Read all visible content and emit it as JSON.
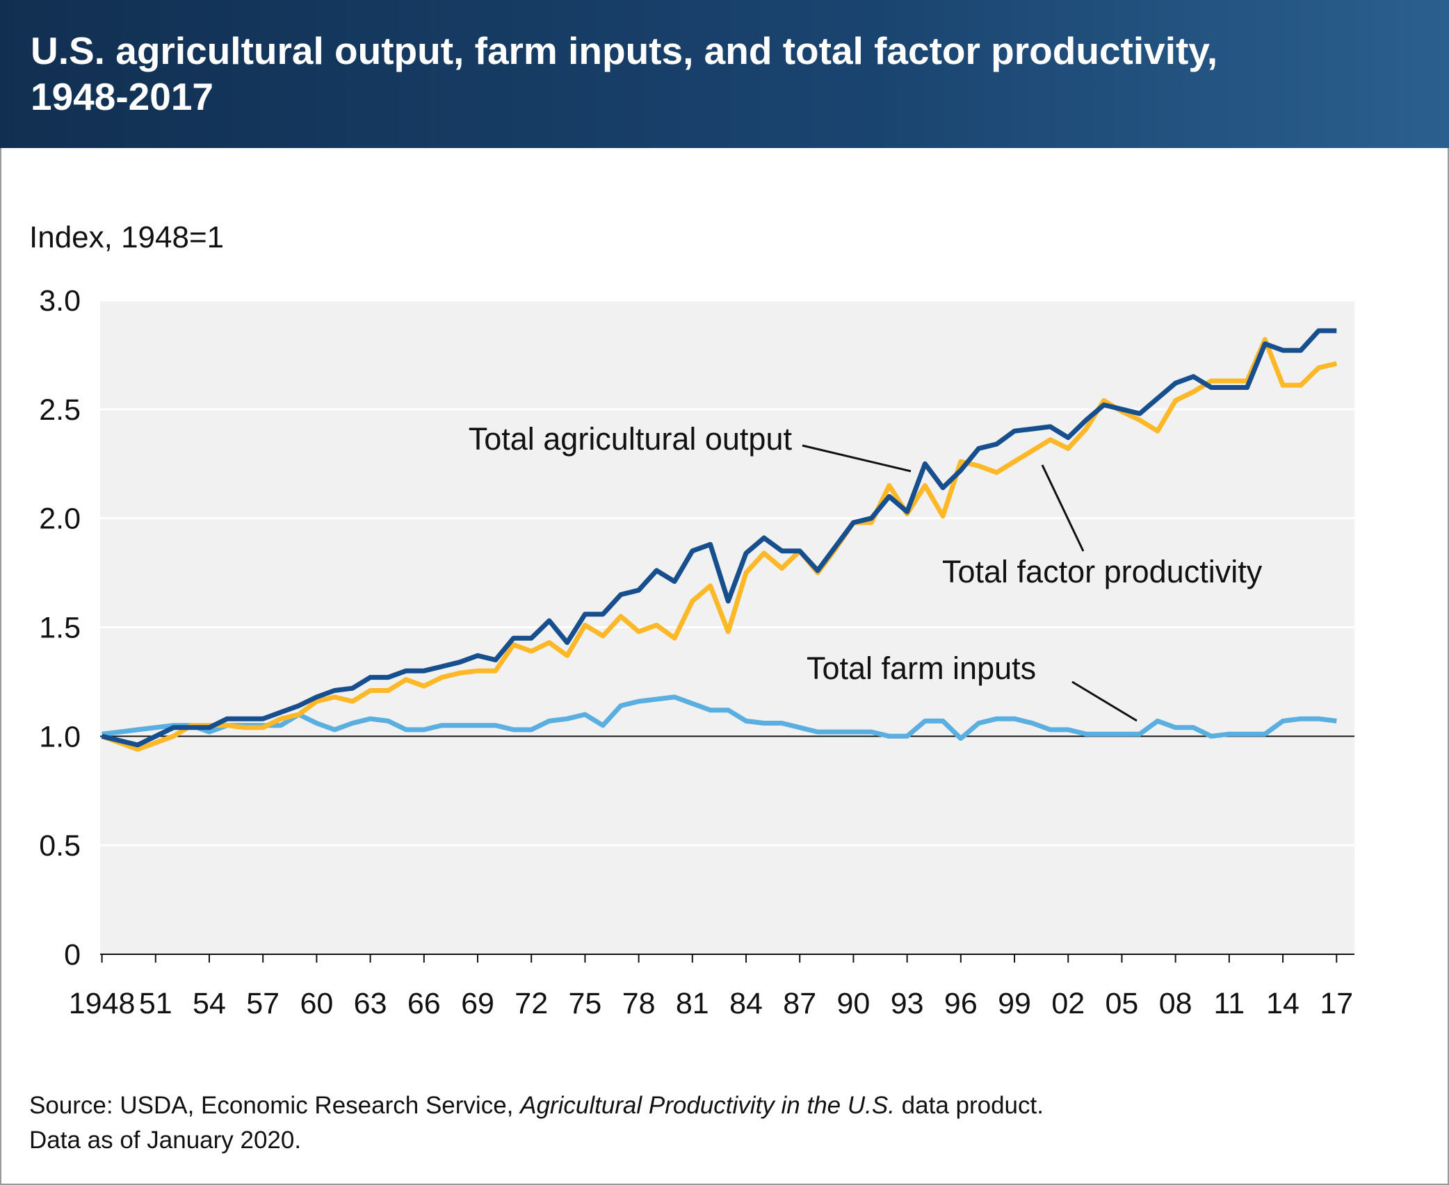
{
  "chart_data": {
    "type": "line",
    "title": "U.S. agricultural output, farm inputs, and total factor productivity, 1948-2017",
    "y_axis_title": "Index, 1948=1",
    "x": [
      1948,
      1949,
      1950,
      1951,
      1952,
      1953,
      1954,
      1955,
      1956,
      1957,
      1958,
      1959,
      1960,
      1961,
      1962,
      1963,
      1964,
      1965,
      1966,
      1967,
      1968,
      1969,
      1970,
      1971,
      1972,
      1973,
      1974,
      1975,
      1976,
      1977,
      1978,
      1979,
      1980,
      1981,
      1982,
      1983,
      1984,
      1985,
      1986,
      1987,
      1988,
      1989,
      1990,
      1991,
      1992,
      1993,
      1994,
      1995,
      1996,
      1997,
      1998,
      1999,
      2000,
      2001,
      2002,
      2003,
      2004,
      2005,
      2006,
      2007,
      2008,
      2009,
      2010,
      2011,
      2012,
      2013,
      2014,
      2015,
      2016,
      2017
    ],
    "series": [
      {
        "name": "Total agricultural output",
        "color": "#174e8d",
        "values": [
          1.0,
          0.98,
          0.96,
          1.0,
          1.04,
          1.04,
          1.04,
          1.08,
          1.08,
          1.08,
          1.11,
          1.14,
          1.18,
          1.21,
          1.22,
          1.27,
          1.27,
          1.3,
          1.3,
          1.32,
          1.34,
          1.37,
          1.35,
          1.45,
          1.45,
          1.53,
          1.43,
          1.56,
          1.56,
          1.65,
          1.67,
          1.76,
          1.71,
          1.85,
          1.88,
          1.62,
          1.84,
          1.91,
          1.85,
          1.85,
          1.76,
          1.87,
          1.98,
          2.0,
          2.1,
          2.03,
          2.25,
          2.14,
          2.22,
          2.32,
          2.34,
          2.4,
          2.41,
          2.42,
          2.37,
          2.45,
          2.52,
          2.5,
          2.48,
          2.55,
          2.62,
          2.65,
          2.6,
          2.6,
          2.6,
          2.8,
          2.77,
          2.77,
          2.86,
          2.86
        ]
      },
      {
        "name": "Total factor productivity",
        "color": "#fdb827",
        "values": [
          1.0,
          0.97,
          0.94,
          0.97,
          1.0,
          1.05,
          1.05,
          1.05,
          1.04,
          1.04,
          1.08,
          1.1,
          1.16,
          1.18,
          1.16,
          1.21,
          1.21,
          1.26,
          1.23,
          1.27,
          1.29,
          1.3,
          1.3,
          1.42,
          1.39,
          1.43,
          1.37,
          1.51,
          1.46,
          1.55,
          1.48,
          1.51,
          1.45,
          1.62,
          1.69,
          1.48,
          1.75,
          1.84,
          1.77,
          1.85,
          1.75,
          1.86,
          1.98,
          1.98,
          2.15,
          2.02,
          2.15,
          2.01,
          2.26,
          2.24,
          2.21,
          2.26,
          2.31,
          2.36,
          2.32,
          2.41,
          2.54,
          2.49,
          2.45,
          2.4,
          2.54,
          2.58,
          2.63,
          2.63,
          2.63,
          2.82,
          2.61,
          2.61,
          2.69,
          2.71
        ]
      },
      {
        "name": "Total farm inputs",
        "color": "#5aafe0",
        "values": [
          1.01,
          1.02,
          1.03,
          1.04,
          1.05,
          1.05,
          1.02,
          1.05,
          1.05,
          1.05,
          1.05,
          1.1,
          1.06,
          1.03,
          1.06,
          1.08,
          1.07,
          1.03,
          1.03,
          1.05,
          1.05,
          1.05,
          1.05,
          1.03,
          1.03,
          1.07,
          1.08,
          1.1,
          1.05,
          1.14,
          1.16,
          1.17,
          1.18,
          1.15,
          1.12,
          1.12,
          1.07,
          1.06,
          1.06,
          1.04,
          1.02,
          1.02,
          1.02,
          1.02,
          1.0,
          1.0,
          1.07,
          1.07,
          0.99,
          1.06,
          1.08,
          1.08,
          1.06,
          1.03,
          1.03,
          1.01,
          1.01,
          1.01,
          1.01,
          1.07,
          1.04,
          1.04,
          1.0,
          1.01,
          1.01,
          1.01,
          1.07,
          1.08,
          1.08,
          1.07
        ]
      }
    ],
    "xlim": [
      1947.9,
      2018
    ],
    "xticks": [
      1948,
      {
        "value": 1951,
        "label": "51"
      },
      {
        "value": 1954,
        "label": "54"
      },
      {
        "value": 1957,
        "label": "57"
      },
      {
        "value": 1960,
        "label": "60"
      },
      {
        "value": 1963,
        "label": "63"
      },
      {
        "value": 1966,
        "label": "66"
      },
      {
        "value": 1969,
        "label": "69"
      },
      {
        "value": 1972,
        "label": "72"
      },
      {
        "value": 1975,
        "label": "75"
      },
      {
        "value": 1978,
        "label": "78"
      },
      {
        "value": 1981,
        "label": "81"
      },
      {
        "value": 1984,
        "label": "84"
      },
      {
        "value": 1987,
        "label": "87"
      },
      {
        "value": 1990,
        "label": "90"
      },
      {
        "value": 1993,
        "label": "93"
      },
      {
        "value": 1996,
        "label": "96"
      },
      {
        "value": 1999,
        "label": "99"
      },
      {
        "value": 2002,
        "label": "02"
      },
      {
        "value": 2005,
        "label": "05"
      },
      {
        "value": 2008,
        "label": "08"
      },
      {
        "value": 2011,
        "label": "11"
      },
      {
        "value": 2014,
        "label": "14"
      },
      {
        "value": 2017,
        "label": "17"
      }
    ],
    "ylim": [
      0,
      3.0
    ],
    "yticks": [
      0,
      {
        "value": 0.5,
        "label": "0.5"
      },
      {
        "value": 1,
        "label": "1.0"
      },
      {
        "value": 1.5,
        "label": "1.5"
      },
      {
        "value": 2,
        "label": "2.0"
      },
      {
        "value": 2.5,
        "label": "2.5"
      },
      {
        "value": 3,
        "label": "3.0"
      }
    ],
    "baseline": 1,
    "grid": true,
    "source": {
      "prefix": "Source: USDA, Economic Research Service, ",
      "title": "Agricultural Productivity in the U.S.",
      "suffix": " data product."
    },
    "note": "Data as of January 2020."
  }
}
